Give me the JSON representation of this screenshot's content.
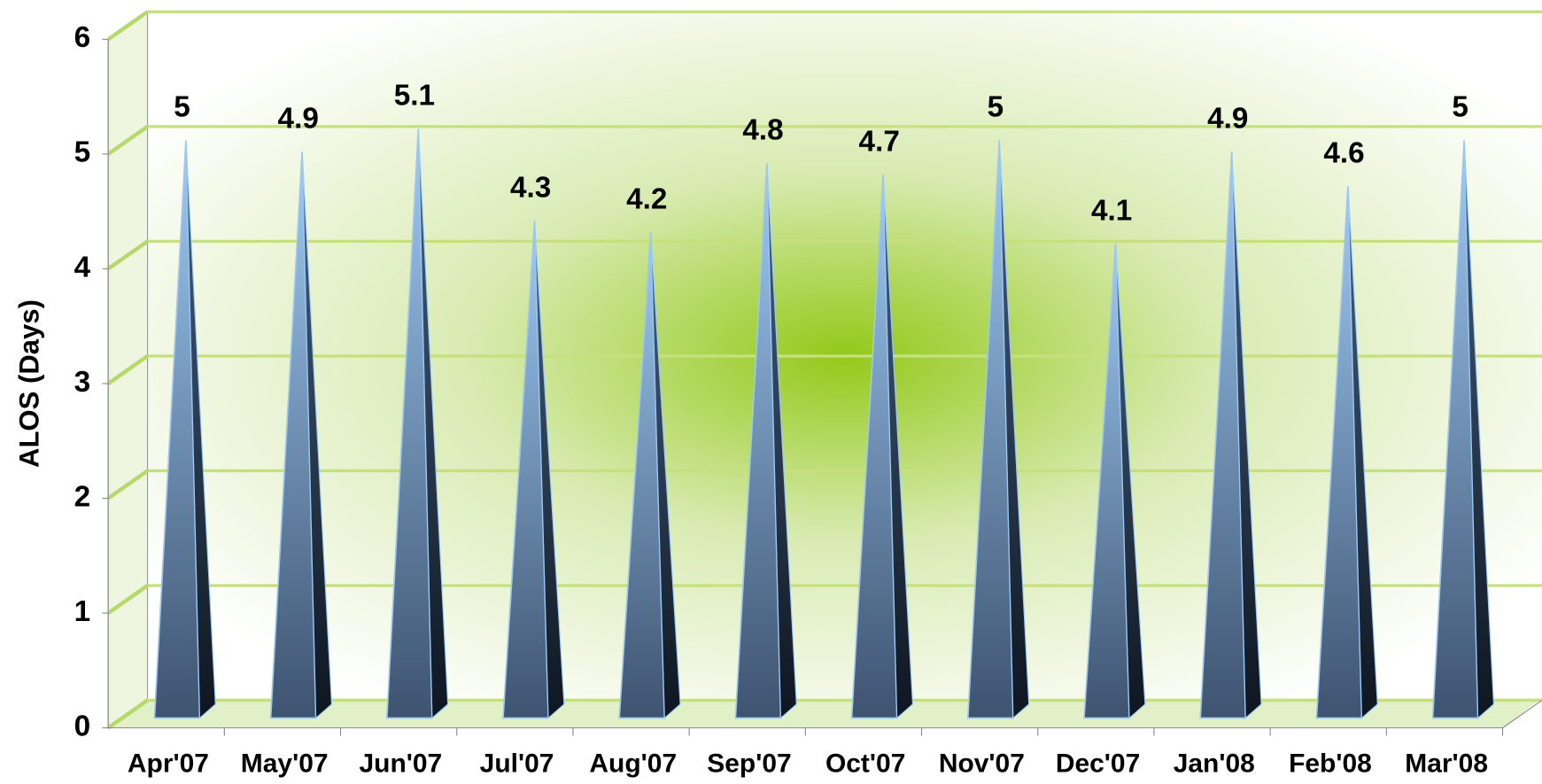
{
  "chart_data": {
    "type": "bar",
    "style": "3d-pyramid",
    "y_label": "ALOS (Days)",
    "categories": [
      "Apr'07",
      "May'07",
      "Jun'07",
      "Jul'07",
      "Aug'07",
      "Sep'07",
      "Oct'07",
      "Nov'07",
      "Dec'07",
      "Jan'08",
      "Feb'08",
      "Mar'08"
    ],
    "values": [
      5,
      4.9,
      5.1,
      4.3,
      4.2,
      4.8,
      4.7,
      5,
      4.1,
      4.9,
      4.6,
      5
    ],
    "color": "#6f93c4",
    "ylim": [
      0,
      6
    ],
    "yticks": [
      0,
      1,
      2,
      3,
      4,
      5,
      6
    ],
    "grid": true
  }
}
